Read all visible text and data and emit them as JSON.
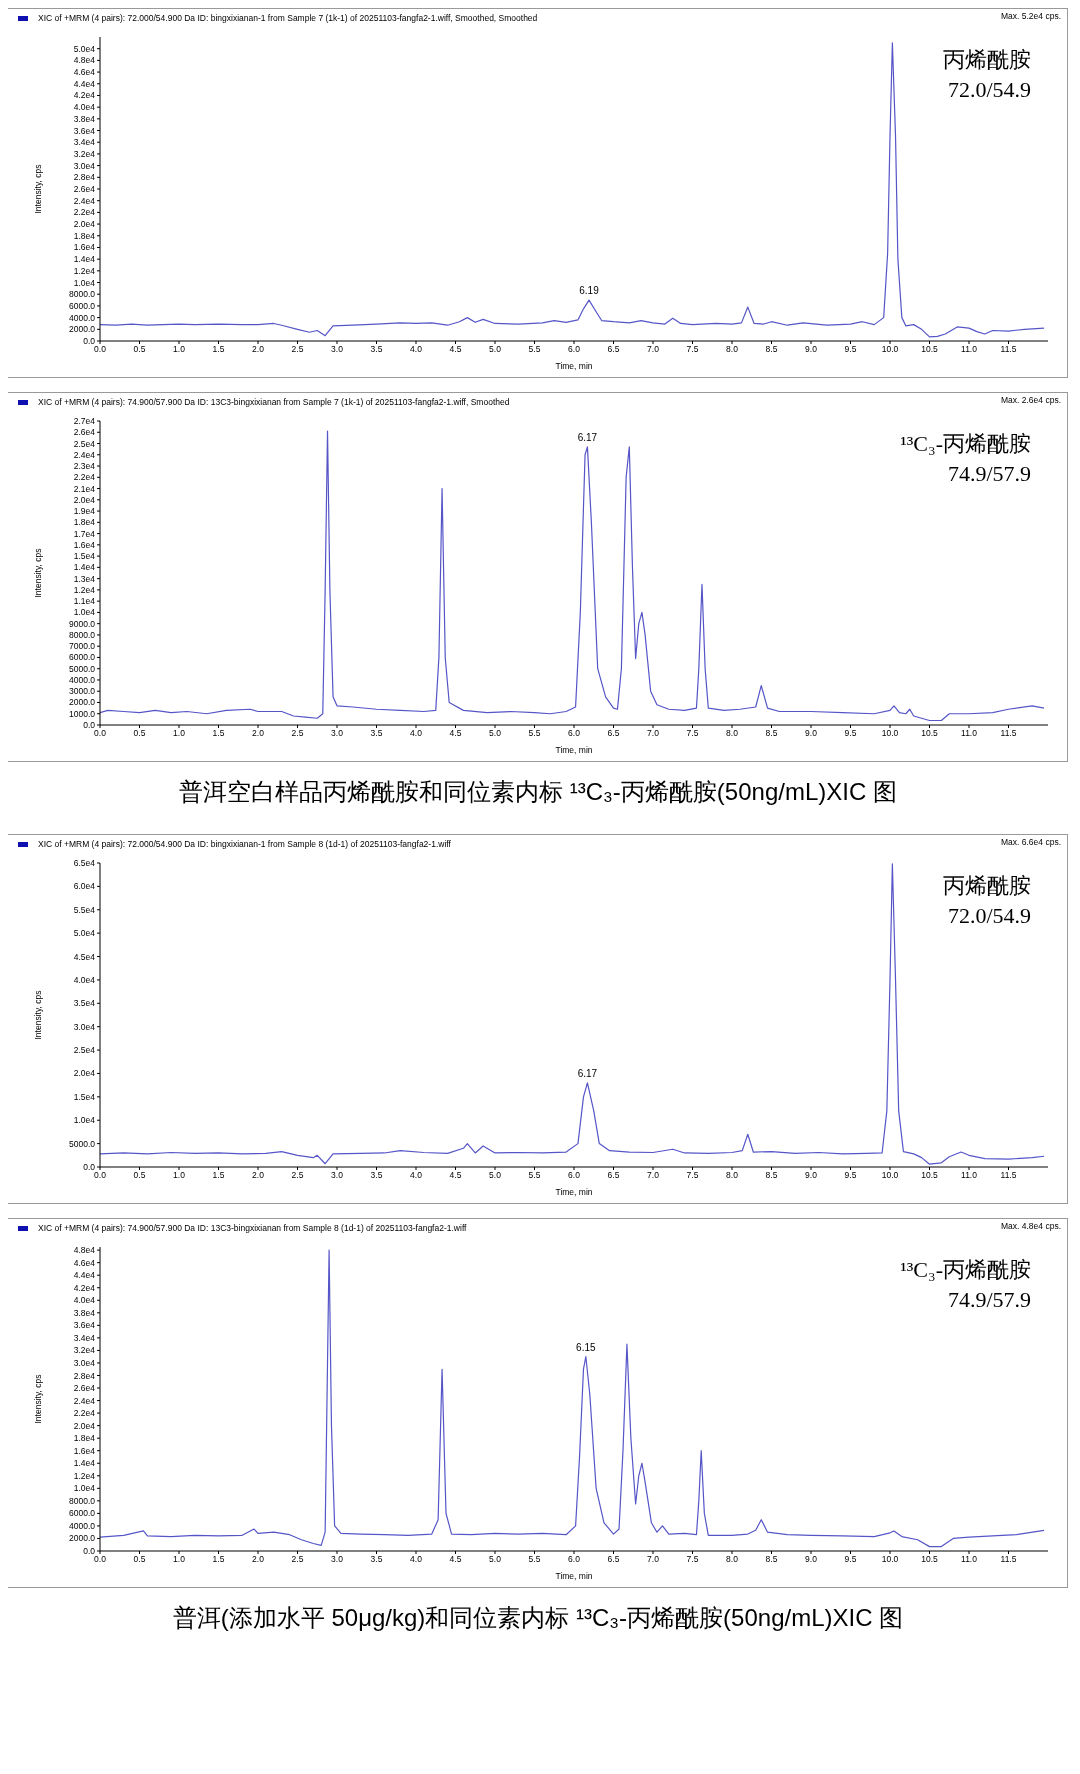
{
  "chart_data": [
    {
      "type": "line",
      "title": "XIC of +MRM (4 pairs): 72.000/54.900 Da ID: bingxixianan-1 from Sample 7 (1k-1) of 20251103-fangfa2-1.wiff, Smoothed, Smoothed",
      "subtitle": "Max. 5.2e4 cps.",
      "xlabel": "Time, min",
      "ylabel": "Intensity, cps",
      "color": "#5555c8",
      "xlim": [
        0,
        12
      ],
      "xticks": [
        {
          "value": 0,
          "label": "0.0"
        },
        {
          "value": 0.5,
          "label": "0.5"
        },
        {
          "value": 1,
          "label": "1.0"
        },
        {
          "value": 1.5,
          "label": "1.5"
        },
        {
          "value": 2,
          "label": "2.0"
        },
        {
          "value": 2.5,
          "label": "2.5"
        },
        {
          "value": 3,
          "label": "3.0"
        },
        {
          "value": 3.5,
          "label": "3.5"
        },
        {
          "value": 4,
          "label": "4.0"
        },
        {
          "value": 4.5,
          "label": "4.5"
        },
        {
          "value": 5,
          "label": "5.0"
        },
        {
          "value": 5.5,
          "label": "5.5"
        },
        {
          "value": 6,
          "label": "6.0"
        },
        {
          "value": 6.5,
          "label": "6.5"
        },
        {
          "value": 7,
          "label": "7.0"
        },
        {
          "value": 7.5,
          "label": "7.5"
        },
        {
          "value": 8,
          "label": "8.0"
        },
        {
          "value": 8.5,
          "label": "8.5"
        },
        {
          "value": 9,
          "label": "9.0"
        },
        {
          "value": 9.5,
          "label": "9.5"
        },
        {
          "value": 10,
          "label": "10.0"
        },
        {
          "value": 10.5,
          "label": "10.5"
        },
        {
          "value": 11,
          "label": "11.0"
        },
        {
          "value": 11.5,
          "label": "11.5"
        }
      ],
      "ylim": [
        0,
        52000
      ],
      "yticks": [
        {
          "value": 0,
          "label": "0.0"
        },
        {
          "value": 2000,
          "label": "2000.0"
        },
        {
          "value": 4000,
          "label": "4000.0"
        },
        {
          "value": 6000,
          "label": "6000.0"
        },
        {
          "value": 8000,
          "label": "8000.0"
        },
        {
          "value": 10000,
          "label": "1.0e4"
        },
        {
          "value": 12000,
          "label": "1.2e4"
        },
        {
          "value": 14000,
          "label": "1.4e4"
        },
        {
          "value": 16000,
          "label": "1.6e4"
        },
        {
          "value": 18000,
          "label": "1.8e4"
        },
        {
          "value": 20000,
          "label": "2.0e4"
        },
        {
          "value": 22000,
          "label": "2.2e4"
        },
        {
          "value": 24000,
          "label": "2.4e4"
        },
        {
          "value": 26000,
          "label": "2.6e4"
        },
        {
          "value": 28000,
          "label": "2.8e4"
        },
        {
          "value": 30000,
          "label": "3.0e4"
        },
        {
          "value": 32000,
          "label": "3.2e4"
        },
        {
          "value": 34000,
          "label": "3.4e4"
        },
        {
          "value": 36000,
          "label": "3.6e4"
        },
        {
          "value": 38000,
          "label": "3.8e4"
        },
        {
          "value": 40000,
          "label": "4.0e4"
        },
        {
          "value": 42000,
          "label": "4.2e4"
        },
        {
          "value": 44000,
          "label": "4.4e4"
        },
        {
          "value": 46000,
          "label": "4.6e4"
        },
        {
          "value": 48000,
          "label": "4.8e4"
        },
        {
          "value": 50000,
          "label": "5.0e4"
        }
      ],
      "x": [
        0,
        0.2,
        0.4,
        0.6,
        0.8,
        1.0,
        1.2,
        1.5,
        1.8,
        2.0,
        2.2,
        2.3,
        2.5,
        2.65,
        2.75,
        2.85,
        2.95,
        3.2,
        3.5,
        3.8,
        4.0,
        4.2,
        4.4,
        4.55,
        4.65,
        4.75,
        4.85,
        5.0,
        5.3,
        5.6,
        5.75,
        5.9,
        6.05,
        6.12,
        6.19,
        6.28,
        6.35,
        6.5,
        6.7,
        6.85,
        7.0,
        7.15,
        7.25,
        7.35,
        7.5,
        7.8,
        8.0,
        8.12,
        8.2,
        8.28,
        8.4,
        8.5,
        8.7,
        8.9,
        9.2,
        9.5,
        9.65,
        9.8,
        9.92,
        9.97,
        10.0,
        10.03,
        10.07,
        10.1,
        10.15,
        10.2,
        10.3,
        10.4,
        10.5,
        10.6,
        10.7,
        10.85,
        11.0,
        11.1,
        11.2,
        11.3,
        11.5,
        11.7,
        11.95
      ],
      "values": [
        2800,
        2700,
        2900,
        2700,
        2800,
        2900,
        2800,
        2900,
        2800,
        2800,
        3000,
        2700,
        2000,
        1500,
        1800,
        900,
        2600,
        2700,
        2900,
        3100,
        3000,
        3100,
        2700,
        3300,
        4000,
        3200,
        3700,
        3000,
        2900,
        3100,
        3500,
        3200,
        3600,
        5500,
        7000,
        5000,
        3500,
        3300,
        3100,
        3500,
        3100,
        2900,
        3900,
        3000,
        2800,
        3000,
        2900,
        3100,
        5800,
        3000,
        2900,
        3300,
        2700,
        3100,
        2700,
        2900,
        3300,
        2800,
        4000,
        15000,
        35000,
        51000,
        35000,
        14000,
        4000,
        2600,
        2800,
        2000,
        700,
        800,
        1200,
        2400,
        2200,
        1600,
        1200,
        1800,
        1700,
        2000,
        2200
      ],
      "annotations": [
        {
          "text": "6.19",
          "x": 6.19,
          "y": 7000
        },
        "丙烯酰胺",
        "72.0/54.9"
      ]
    },
    {
      "type": "line",
      "title": "XIC of +MRM (4 pairs): 74.900/57.900 Da ID: 13C3-bingxixianan from Sample 7 (1k-1) of 20251103-fangfa2-1.wiff, Smoothed",
      "subtitle": "Max. 2.6e4 cps.",
      "xlabel": "Time, min",
      "ylabel": "Intensity, cps",
      "color": "#5555c8",
      "xlim": [
        0,
        12
      ],
      "xticks": [
        {
          "value": 0,
          "label": "0.0"
        },
        {
          "value": 0.5,
          "label": "0.5"
        },
        {
          "value": 1,
          "label": "1.0"
        },
        {
          "value": 1.5,
          "label": "1.5"
        },
        {
          "value": 2,
          "label": "2.0"
        },
        {
          "value": 2.5,
          "label": "2.5"
        },
        {
          "value": 3,
          "label": "3.0"
        },
        {
          "value": 3.5,
          "label": "3.5"
        },
        {
          "value": 4,
          "label": "4.0"
        },
        {
          "value": 4.5,
          "label": "4.5"
        },
        {
          "value": 5,
          "label": "5.0"
        },
        {
          "value": 5.5,
          "label": "5.5"
        },
        {
          "value": 6,
          "label": "6.0"
        },
        {
          "value": 6.5,
          "label": "6.5"
        },
        {
          "value": 7,
          "label": "7.0"
        },
        {
          "value": 7.5,
          "label": "7.5"
        },
        {
          "value": 8,
          "label": "8.0"
        },
        {
          "value": 8.5,
          "label": "8.5"
        },
        {
          "value": 9,
          "label": "9.0"
        },
        {
          "value": 9.5,
          "label": "9.5"
        },
        {
          "value": 10,
          "label": "10.0"
        },
        {
          "value": 10.5,
          "label": "10.5"
        },
        {
          "value": 11,
          "label": "11.0"
        },
        {
          "value": 11.5,
          "label": "11.5"
        }
      ],
      "ylim": [
        0,
        27000
      ],
      "yticks": [
        {
          "value": 0,
          "label": "0.0"
        },
        {
          "value": 1000,
          "label": "1000.0"
        },
        {
          "value": 2000,
          "label": "2000.0"
        },
        {
          "value": 3000,
          "label": "3000.0"
        },
        {
          "value": 4000,
          "label": "4000.0"
        },
        {
          "value": 5000,
          "label": "5000.0"
        },
        {
          "value": 6000,
          "label": "6000.0"
        },
        {
          "value": 7000,
          "label": "7000.0"
        },
        {
          "value": 8000,
          "label": "8000.0"
        },
        {
          "value": 9000,
          "label": "9000.0"
        },
        {
          "value": 10000,
          "label": "1.0e4"
        },
        {
          "value": 11000,
          "label": "1.1e4"
        },
        {
          "value": 12000,
          "label": "1.2e4"
        },
        {
          "value": 13000,
          "label": "1.3e4"
        },
        {
          "value": 14000,
          "label": "1.4e4"
        },
        {
          "value": 15000,
          "label": "1.5e4"
        },
        {
          "value": 16000,
          "label": "1.6e4"
        },
        {
          "value": 17000,
          "label": "1.7e4"
        },
        {
          "value": 18000,
          "label": "1.8e4"
        },
        {
          "value": 19000,
          "label": "1.9e4"
        },
        {
          "value": 20000,
          "label": "2.0e4"
        },
        {
          "value": 21000,
          "label": "2.1e4"
        },
        {
          "value": 22000,
          "label": "2.2e4"
        },
        {
          "value": 23000,
          "label": "2.3e4"
        },
        {
          "value": 24000,
          "label": "2.4e4"
        },
        {
          "value": 25000,
          "label": "2.5e4"
        },
        {
          "value": 26000,
          "label": "2.6e4"
        },
        {
          "value": 27000,
          "label": "2.7e4"
        }
      ],
      "x": [
        0,
        0.1,
        0.3,
        0.5,
        0.7,
        0.9,
        1.1,
        1.35,
        1.6,
        1.9,
        2.0,
        2.3,
        2.45,
        2.6,
        2.75,
        2.82,
        2.85,
        2.88,
        2.91,
        2.95,
        3.0,
        3.2,
        3.5,
        3.8,
        4.1,
        4.25,
        4.29,
        4.33,
        4.37,
        4.42,
        4.6,
        4.9,
        5.2,
        5.5,
        5.7,
        5.9,
        6.02,
        6.08,
        6.14,
        6.17,
        6.22,
        6.3,
        6.4,
        6.5,
        6.55,
        6.6,
        6.66,
        6.7,
        6.74,
        6.78,
        6.82,
        6.86,
        6.9,
        6.97,
        7.05,
        7.2,
        7.4,
        7.55,
        7.58,
        7.62,
        7.66,
        7.7,
        7.9,
        8.1,
        8.3,
        8.37,
        8.45,
        8.6,
        9.0,
        9.4,
        9.8,
        10.0,
        10.05,
        10.12,
        10.2,
        10.25,
        10.3,
        10.5,
        10.65,
        10.75,
        11.0,
        11.3,
        11.5,
        11.8,
        11.95
      ],
      "values": [
        1100,
        1300,
        1200,
        1100,
        1300,
        1100,
        1200,
        1000,
        1300,
        1400,
        1200,
        1200,
        800,
        700,
        600,
        1000,
        12000,
        26100,
        12000,
        2500,
        1700,
        1600,
        1400,
        1300,
        1200,
        1300,
        6000,
        21000,
        6000,
        2000,
        1300,
        1100,
        1200,
        1100,
        1000,
        1200,
        1600,
        10000,
        24000,
        24700,
        18000,
        5000,
        2500,
        1500,
        1400,
        5000,
        22000,
        24700,
        14000,
        5900,
        9000,
        10000,
        8000,
        3000,
        1800,
        1400,
        1300,
        1500,
        5000,
        12500,
        5000,
        1500,
        1300,
        1400,
        1600,
        3500,
        1500,
        1200,
        1200,
        1100,
        1000,
        1300,
        1700,
        1100,
        1000,
        1400,
        800,
        400,
        400,
        1000,
        1000,
        1100,
        1400,
        1700,
        1500
      ],
      "annotations": [
        {
          "text": "6.17",
          "x": 6.17,
          "y": 24700
        },
        "¹³C₃-丙烯酰胺",
        "74.9/57.9",
        "普洱空白样品丙烯酰胺和同位素内标 ¹³C₃-丙烯酰胺(50ng/mL)XIC 图"
      ]
    },
    {
      "type": "line",
      "title": "XIC of +MRM (4 pairs): 72.000/54.900 Da ID: bingxixianan-1 from Sample 8 (1d-1) of 20251103-fangfa2-1.wiff",
      "subtitle": "Max. 6.6e4 cps.",
      "xlabel": "Time, min",
      "ylabel": "Intensity, cps",
      "color": "#5555c8",
      "xlim": [
        0,
        12
      ],
      "xticks": [
        {
          "value": 0,
          "label": "0.0"
        },
        {
          "value": 0.5,
          "label": "0.5"
        },
        {
          "value": 1,
          "label": "1.0"
        },
        {
          "value": 1.5,
          "label": "1.5"
        },
        {
          "value": 2,
          "label": "2.0"
        },
        {
          "value": 2.5,
          "label": "2.5"
        },
        {
          "value": 3,
          "label": "3.0"
        },
        {
          "value": 3.5,
          "label": "3.5"
        },
        {
          "value": 4,
          "label": "4.0"
        },
        {
          "value": 4.5,
          "label": "4.5"
        },
        {
          "value": 5,
          "label": "5.0"
        },
        {
          "value": 5.5,
          "label": "5.5"
        },
        {
          "value": 6,
          "label": "6.0"
        },
        {
          "value": 6.5,
          "label": "6.5"
        },
        {
          "value": 7,
          "label": "7.0"
        },
        {
          "value": 7.5,
          "label": "7.5"
        },
        {
          "value": 8,
          "label": "8.0"
        },
        {
          "value": 8.5,
          "label": "8.5"
        },
        {
          "value": 9,
          "label": "9.0"
        },
        {
          "value": 9.5,
          "label": "9.5"
        },
        {
          "value": 10,
          "label": "10.0"
        },
        {
          "value": 10.5,
          "label": "10.5"
        },
        {
          "value": 11,
          "label": "11.0"
        },
        {
          "value": 11.5,
          "label": "11.5"
        }
      ],
      "ylim": [
        0,
        65000
      ],
      "yticks": [
        {
          "value": 0,
          "label": "0.0"
        },
        {
          "value": 5000,
          "label": "5000.0"
        },
        {
          "value": 10000,
          "label": "1.0e4"
        },
        {
          "value": 15000,
          "label": "1.5e4"
        },
        {
          "value": 20000,
          "label": "2.0e4"
        },
        {
          "value": 25000,
          "label": "2.5e4"
        },
        {
          "value": 30000,
          "label": "3.0e4"
        },
        {
          "value": 35000,
          "label": "3.5e4"
        },
        {
          "value": 40000,
          "label": "4.0e4"
        },
        {
          "value": 45000,
          "label": "4.5e4"
        },
        {
          "value": 50000,
          "label": "5.0e4"
        },
        {
          "value": 55000,
          "label": "5.5e4"
        },
        {
          "value": 60000,
          "label": "6.0e4"
        },
        {
          "value": 65000,
          "label": "6.5e4"
        }
      ],
      "x": [
        0,
        0.3,
        0.6,
        0.9,
        1.2,
        1.5,
        1.8,
        2.1,
        2.3,
        2.5,
        2.7,
        2.75,
        2.85,
        2.95,
        3.3,
        3.6,
        3.8,
        4.1,
        4.4,
        4.6,
        4.65,
        4.75,
        4.85,
        5.0,
        5.3,
        5.6,
        5.9,
        6.05,
        6.12,
        6.17,
        6.25,
        6.32,
        6.45,
        6.7,
        7.0,
        7.25,
        7.4,
        7.7,
        8.0,
        8.13,
        8.2,
        8.27,
        8.5,
        8.8,
        9.1,
        9.4,
        9.7,
        9.9,
        9.96,
        10.0,
        10.03,
        10.07,
        10.11,
        10.17,
        10.3,
        10.4,
        10.5,
        10.65,
        10.75,
        10.9,
        11.0,
        11.2,
        11.5,
        11.8,
        11.95
      ],
      "values": [
        2800,
        3000,
        2800,
        3100,
        2900,
        3000,
        2800,
        2900,
        3300,
        2500,
        2000,
        2500,
        700,
        2800,
        2900,
        3000,
        3500,
        3100,
        2900,
        4000,
        5000,
        3000,
        4500,
        3000,
        3100,
        3000,
        3200,
        5000,
        15000,
        18000,
        12000,
        5000,
        3500,
        3200,
        3100,
        3800,
        3000,
        2900,
        3100,
        3500,
        7000,
        3200,
        3300,
        2900,
        3100,
        2800,
        2900,
        3000,
        12000,
        40000,
        64800,
        40000,
        12000,
        3300,
        2800,
        2000,
        600,
        900,
        2200,
        3200,
        2500,
        1800,
        1700,
        2000,
        2300
      ],
      "annotations": [
        {
          "text": "6.17",
          "x": 6.17,
          "y": 18000
        },
        "丙烯酰胺",
        "72.0/54.9"
      ]
    },
    {
      "type": "line",
      "title": "XIC of +MRM (4 pairs): 74.900/57.900 Da ID: 13C3-bingxixianan from Sample 8 (1d-1) of 20251103-fangfa2-1.wiff",
      "subtitle": "Max. 4.8e4 cps.",
      "xlabel": "Time, min",
      "ylabel": "Intensity, cps",
      "color": "#5555c8",
      "xlim": [
        0,
        12
      ],
      "xticks": [
        {
          "value": 0,
          "label": "0.0"
        },
        {
          "value": 0.5,
          "label": "0.5"
        },
        {
          "value": 1,
          "label": "1.0"
        },
        {
          "value": 1.5,
          "label": "1.5"
        },
        {
          "value": 2,
          "label": "2.0"
        },
        {
          "value": 2.5,
          "label": "2.5"
        },
        {
          "value": 3,
          "label": "3.0"
        },
        {
          "value": 3.5,
          "label": "3.5"
        },
        {
          "value": 4,
          "label": "4.0"
        },
        {
          "value": 4.5,
          "label": "4.5"
        },
        {
          "value": 5,
          "label": "5.0"
        },
        {
          "value": 5.5,
          "label": "5.5"
        },
        {
          "value": 6,
          "label": "6.0"
        },
        {
          "value": 6.5,
          "label": "6.5"
        },
        {
          "value": 7,
          "label": "7.0"
        },
        {
          "value": 7.5,
          "label": "7.5"
        },
        {
          "value": 8,
          "label": "8.0"
        },
        {
          "value": 8.5,
          "label": "8.5"
        },
        {
          "value": 9,
          "label": "9.0"
        },
        {
          "value": 9.5,
          "label": "9.5"
        },
        {
          "value": 10,
          "label": "10.0"
        },
        {
          "value": 10.5,
          "label": "10.5"
        },
        {
          "value": 11,
          "label": "11.0"
        },
        {
          "value": 11.5,
          "label": "11.5"
        }
      ],
      "ylim": [
        0,
        48500
      ],
      "yticks": [
        {
          "value": 0,
          "label": "0.0"
        },
        {
          "value": 2000,
          "label": "2000.0"
        },
        {
          "value": 4000,
          "label": "4000.0"
        },
        {
          "value": 6000,
          "label": "6000.0"
        },
        {
          "value": 8000,
          "label": "8000.0"
        },
        {
          "value": 10000,
          "label": "1.0e4"
        },
        {
          "value": 12000,
          "label": "1.2e4"
        },
        {
          "value": 14000,
          "label": "1.4e4"
        },
        {
          "value": 16000,
          "label": "1.6e4"
        },
        {
          "value": 18000,
          "label": "1.8e4"
        },
        {
          "value": 20000,
          "label": "2.0e4"
        },
        {
          "value": 22000,
          "label": "2.2e4"
        },
        {
          "value": 24000,
          "label": "2.4e4"
        },
        {
          "value": 26000,
          "label": "2.6e4"
        },
        {
          "value": 28000,
          "label": "2.8e4"
        },
        {
          "value": 30000,
          "label": "3.0e4"
        },
        {
          "value": 32000,
          "label": "3.2e4"
        },
        {
          "value": 34000,
          "label": "3.4e4"
        },
        {
          "value": 36000,
          "label": "3.6e4"
        },
        {
          "value": 38000,
          "label": "3.8e4"
        },
        {
          "value": 40000,
          "label": "4.0e4"
        },
        {
          "value": 42000,
          "label": "4.2e4"
        },
        {
          "value": 44000,
          "label": "4.4e4"
        },
        {
          "value": 46000,
          "label": "4.6e4"
        },
        {
          "value": 48000,
          "label": "4.8e4"
        }
      ],
      "x": [
        0,
        0.3,
        0.55,
        0.6,
        0.9,
        1.2,
        1.5,
        1.8,
        1.95,
        2.0,
        2.2,
        2.4,
        2.55,
        2.7,
        2.8,
        2.85,
        2.88,
        2.9,
        2.93,
        2.97,
        3.05,
        3.3,
        3.6,
        3.9,
        4.2,
        4.28,
        4.33,
        4.38,
        4.45,
        4.7,
        5.0,
        5.3,
        5.6,
        5.9,
        6.02,
        6.07,
        6.12,
        6.15,
        6.2,
        6.28,
        6.38,
        6.5,
        6.57,
        6.62,
        6.67,
        6.72,
        6.78,
        6.82,
        6.86,
        6.9,
        6.98,
        7.05,
        7.12,
        7.2,
        7.4,
        7.55,
        7.58,
        7.61,
        7.65,
        7.7,
        8.0,
        8.2,
        8.3,
        8.37,
        8.45,
        8.7,
        9.0,
        9.4,
        9.8,
        10.0,
        10.05,
        10.15,
        10.35,
        10.5,
        10.65,
        10.8,
        11.0,
        11.3,
        11.6,
        11.95
      ],
      "values": [
        2200,
        2500,
        3200,
        2400,
        2300,
        2500,
        2400,
        2500,
        3500,
        2800,
        3000,
        2600,
        1800,
        1200,
        900,
        3000,
        30000,
        48000,
        20000,
        4000,
        2800,
        2700,
        2600,
        2500,
        2700,
        5000,
        29000,
        6000,
        2700,
        2600,
        2800,
        2700,
        2800,
        2600,
        4000,
        15000,
        29000,
        31000,
        25000,
        10000,
        4500,
        2700,
        3500,
        16000,
        33000,
        18000,
        7500,
        12000,
        14000,
        11000,
        4500,
        3000,
        4000,
        2700,
        2800,
        2600,
        8000,
        16000,
        6000,
        2500,
        2500,
        2700,
        3300,
        5000,
        3000,
        2600,
        2500,
        2400,
        2300,
        2900,
        3200,
        2300,
        1800,
        700,
        700,
        2000,
        2200,
        2400,
        2600,
        3300
      ],
      "annotations": [
        {
          "text": "6.15",
          "x": 6.15,
          "y": 31000
        },
        "¹³C₃-丙烯酰胺",
        "74.9/57.9",
        "普洱(添加水平 50μg/kg)和同位素内标 ¹³C₃-丙烯酰胺(50ng/mL)XIC 图"
      ]
    }
  ]
}
